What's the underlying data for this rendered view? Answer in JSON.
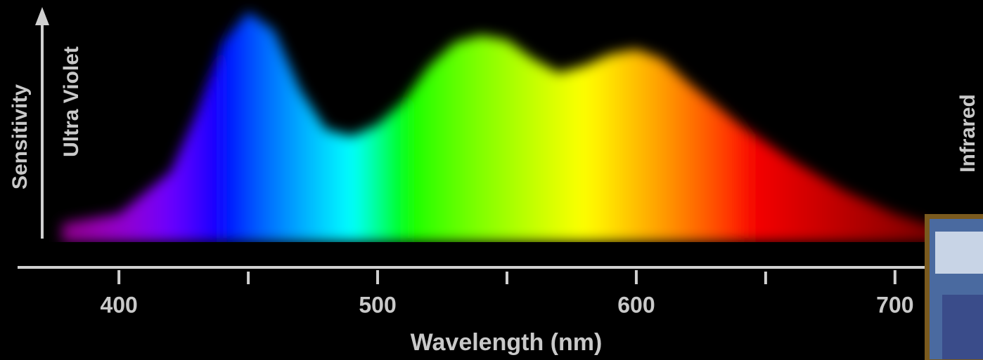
{
  "chart_data": {
    "type": "area",
    "y_label": "Sensitivity",
    "left_annotation": "Ultra Violet",
    "right_annotation": "Infrared",
    "x_label": "Wavelength (nm)",
    "x": [
      378,
      400,
      420,
      430,
      440,
      450,
      460,
      470,
      480,
      490,
      500,
      510,
      520,
      530,
      540,
      550,
      560,
      570,
      580,
      590,
      600,
      610,
      620,
      640,
      660,
      680,
      700,
      720
    ],
    "values": [
      8,
      12,
      30,
      55,
      85,
      98,
      90,
      65,
      48,
      45,
      50,
      60,
      75,
      85,
      88,
      86,
      78,
      72,
      75,
      80,
      82,
      78,
      68,
      50,
      35,
      22,
      12,
      5
    ],
    "xlim": [
      360,
      715
    ],
    "xticks": [
      400,
      500,
      600,
      700
    ],
    "xminor_ticks": [
      450,
      550,
      650
    ],
    "ylim": [
      0,
      100
    ]
  }
}
